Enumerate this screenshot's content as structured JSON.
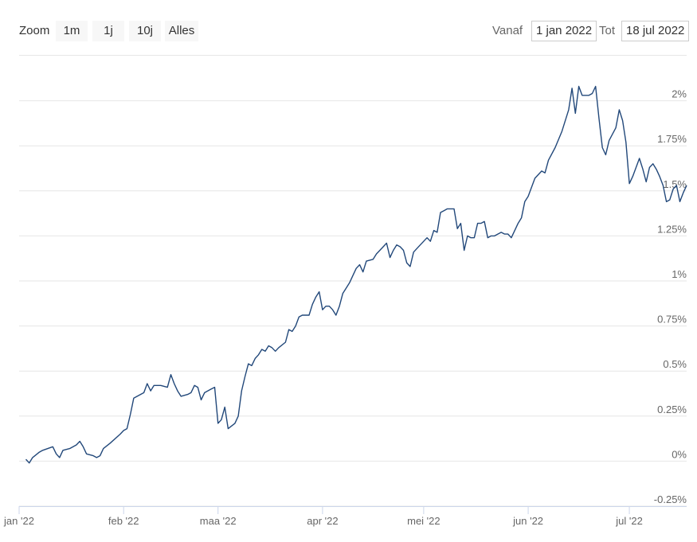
{
  "toolbar": {
    "zoom_label": "Zoom",
    "buttons": [
      "1m",
      "1j",
      "10j",
      "Alles"
    ],
    "from_label": "Vanaf",
    "from_value": "1 jan 2022",
    "to_label": "Tot",
    "to_value": "18 jul 2022"
  },
  "chart_data": {
    "type": "line",
    "x": [
      2,
      3,
      4,
      6,
      7,
      10,
      11,
      12,
      13,
      15,
      17,
      18,
      19,
      20,
      22,
      23,
      24,
      25,
      27,
      30,
      31,
      32,
      33,
      34,
      36,
      37,
      38,
      39,
      40,
      42,
      44,
      45,
      46,
      47,
      48,
      50,
      51,
      52,
      53,
      54,
      55,
      57,
      58,
      59,
      60,
      61,
      62,
      64,
      65,
      66,
      67,
      68,
      69,
      70,
      71,
      72,
      73,
      74,
      75,
      76,
      77,
      79,
      80,
      81,
      82,
      83,
      84,
      86,
      87,
      88,
      89,
      90,
      91,
      92,
      93,
      94,
      95,
      96,
      97,
      98,
      99,
      100,
      101,
      102,
      103,
      105,
      106,
      107,
      108,
      109,
      110,
      111,
      112,
      113,
      114,
      115,
      116,
      117,
      118,
      119,
      121,
      122,
      123,
      124,
      125,
      126,
      127,
      128,
      129,
      130,
      131,
      132,
      133,
      134,
      135,
      136,
      137,
      138,
      139,
      140,
      141,
      142,
      143,
      144,
      145,
      146,
      147,
      148,
      149,
      150,
      151,
      153,
      154,
      155,
      156,
      157,
      159,
      161,
      163,
      164,
      165,
      166,
      167,
      169,
      170,
      171,
      172,
      173,
      174,
      175,
      177,
      178,
      179,
      180,
      181,
      182,
      183,
      184,
      185,
      186,
      187,
      188,
      189,
      190,
      191,
      192,
      193,
      194,
      195,
      196,
      197,
      198
    ],
    "series": [
      {
        "color": "#22487a",
        "values": [
          0.01,
          -0.01,
          0.02,
          0.05,
          0.06,
          0.08,
          0.04,
          0.02,
          0.06,
          0.07,
          0.09,
          0.11,
          0.08,
          0.04,
          0.03,
          0.02,
          0.03,
          0.07,
          0.1,
          0.15,
          0.17,
          0.18,
          0.26,
          0.35,
          0.37,
          0.38,
          0.43,
          0.39,
          0.42,
          0.42,
          0.41,
          0.48,
          0.43,
          0.39,
          0.36,
          0.37,
          0.38,
          0.42,
          0.41,
          0.34,
          0.38,
          0.4,
          0.41,
          0.21,
          0.23,
          0.3,
          0.18,
          0.21,
          0.25,
          0.39,
          0.47,
          0.54,
          0.53,
          0.57,
          0.59,
          0.62,
          0.61,
          0.64,
          0.63,
          0.61,
          0.63,
          0.66,
          0.73,
          0.72,
          0.75,
          0.8,
          0.81,
          0.81,
          0.87,
          0.91,
          0.94,
          0.84,
          0.86,
          0.86,
          0.84,
          0.81,
          0.86,
          0.93,
          0.96,
          0.99,
          1.03,
          1.07,
          1.09,
          1.05,
          1.11,
          1.12,
          1.15,
          1.17,
          1.19,
          1.21,
          1.13,
          1.17,
          1.2,
          1.19,
          1.17,
          1.1,
          1.08,
          1.16,
          1.18,
          1.2,
          1.24,
          1.22,
          1.28,
          1.27,
          1.38,
          1.39,
          1.4,
          1.4,
          1.4,
          1.29,
          1.32,
          1.17,
          1.25,
          1.24,
          1.24,
          1.32,
          1.32,
          1.33,
          1.24,
          1.25,
          1.25,
          1.26,
          1.27,
          1.26,
          1.26,
          1.24,
          1.28,
          1.32,
          1.35,
          1.44,
          1.47,
          1.57,
          1.59,
          1.61,
          1.6,
          1.67,
          1.74,
          1.83,
          1.95,
          2.07,
          1.93,
          2.08,
          2.03,
          2.03,
          2.04,
          2.08,
          1.9,
          1.74,
          1.7,
          1.78,
          1.85,
          1.95,
          1.89,
          1.77,
          1.54,
          1.58,
          1.63,
          1.68,
          1.62,
          1.55,
          1.63,
          1.65,
          1.62,
          1.58,
          1.53,
          1.44,
          1.45,
          1.51,
          1.53,
          1.44,
          1.49,
          1.53
        ]
      }
    ],
    "xlim": [
      0,
      198
    ],
    "xticks": [
      {
        "value": 0,
        "label": "jan '22"
      },
      {
        "value": 31,
        "label": "feb '22"
      },
      {
        "value": 59,
        "label": "maa '22"
      },
      {
        "value": 90,
        "label": "apr '22"
      },
      {
        "value": 120,
        "label": "mei '22"
      },
      {
        "value": 151,
        "label": "jun '22"
      },
      {
        "value": 181,
        "label": "jul '22"
      }
    ],
    "ylim": [
      -0.25,
      2.25
    ],
    "yticks": [
      {
        "value": -0.25,
        "label": "-0.25%"
      },
      {
        "value": 0,
        "label": "0%"
      },
      {
        "value": 0.25,
        "label": "0.25%"
      },
      {
        "value": 0.5,
        "label": "0.5%"
      },
      {
        "value": 0.75,
        "label": "0.75%"
      },
      {
        "value": 1,
        "label": "1%"
      },
      {
        "value": 1.25,
        "label": "1.25%"
      },
      {
        "value": 1.5,
        "label": "1.5%"
      },
      {
        "value": 1.75,
        "label": "1.75%"
      },
      {
        "value": 2,
        "label": "2%"
      }
    ],
    "grid": true
  }
}
